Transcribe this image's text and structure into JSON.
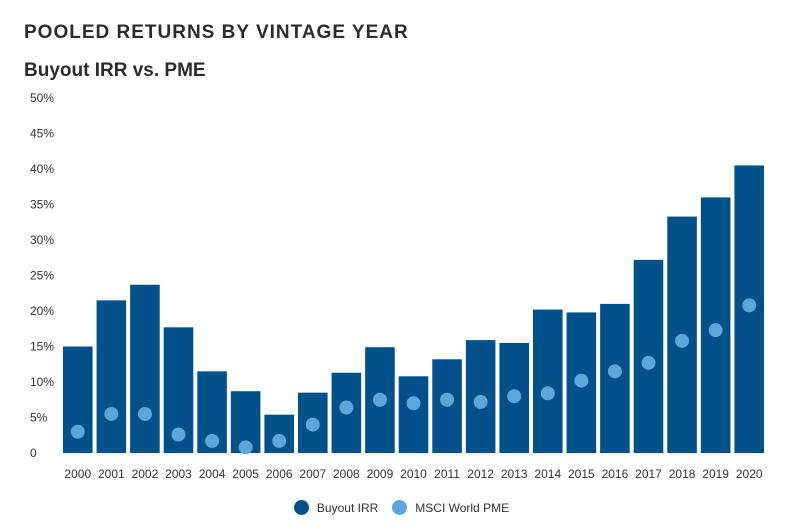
{
  "title": "POOLED RETURNS BY VINTAGE YEAR",
  "subtitle": "Buyout IRR vs. PME",
  "colors": {
    "bar": "#00508a",
    "dot": "#5ba7d9"
  },
  "chart_data": {
    "type": "bar",
    "categories": [
      "2000",
      "2001",
      "2002",
      "2003",
      "2004",
      "2005",
      "2006",
      "2007",
      "2008",
      "2009",
      "2010",
      "2011",
      "2012",
      "2013",
      "2014",
      "2015",
      "2016",
      "2017",
      "2018",
      "2019",
      "2020"
    ],
    "series": [
      {
        "name": "Buyout IRR",
        "type": "bar",
        "values": [
          15.0,
          21.5,
          23.7,
          17.7,
          11.5,
          8.7,
          5.4,
          8.5,
          11.3,
          14.9,
          10.8,
          13.2,
          15.9,
          15.5,
          20.2,
          19.8,
          21.0,
          27.2,
          33.3,
          36.0,
          40.5
        ]
      },
      {
        "name": "MSCI World PME",
        "type": "scatter",
        "values": [
          3.0,
          5.5,
          5.5,
          2.6,
          1.7,
          0.8,
          1.7,
          4.0,
          6.4,
          7.5,
          7.0,
          7.5,
          7.2,
          8.0,
          8.4,
          10.2,
          11.5,
          12.7,
          15.8,
          17.3,
          20.8
        ]
      }
    ],
    "ylim": [
      0,
      50
    ],
    "yticks": [
      "0",
      "5%",
      "10%",
      "15%",
      "20%",
      "25%",
      "30%",
      "35%",
      "40%",
      "45%",
      "50%"
    ],
    "legend_position": "bottom-center"
  }
}
